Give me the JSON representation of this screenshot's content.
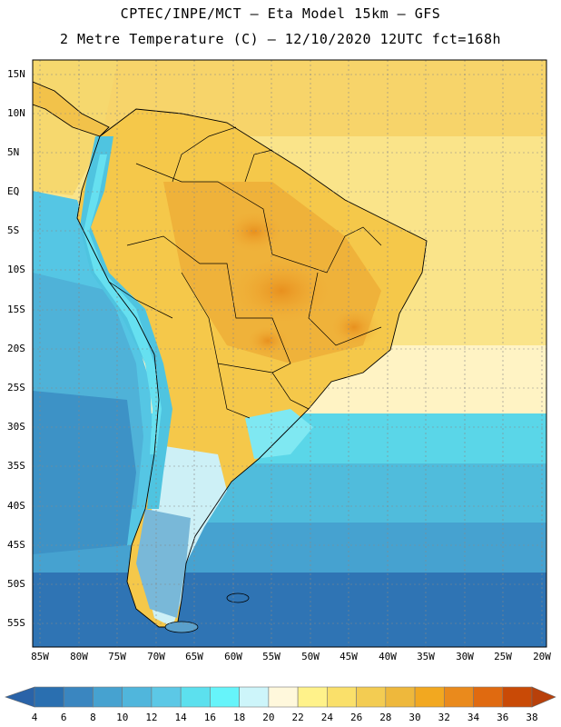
{
  "header": {
    "line1": "CPTEC/INPE/MCT –  Eta Model 15km – GFS",
    "line2": "2 Metre Temperature (C) – 12/10/2020 12UTC fct=168h"
  },
  "map": {
    "region": "South America",
    "lat_labels": [
      "15N",
      "10N",
      "5N",
      "EQ",
      "5S",
      "10S",
      "15S",
      "20S",
      "25S",
      "30S",
      "35S",
      "40S",
      "45S",
      "50S",
      "55S"
    ],
    "lon_labels": [
      "85W",
      "80W",
      "75W",
      "70W",
      "65W",
      "60W",
      "55W",
      "50W",
      "45W",
      "40W",
      "35W",
      "30W",
      "25W",
      "20W"
    ],
    "ocean_color": "#5ad6e8",
    "land_hot_color": "#e8a02a",
    "land_warm_color": "#f5c84a"
  },
  "legend": {
    "ticks": [
      "4",
      "6",
      "8",
      "10",
      "12",
      "14",
      "16",
      "18",
      "20",
      "22",
      "24",
      "26",
      "28",
      "30",
      "32",
      "34",
      "36",
      "38"
    ],
    "colors": [
      "#2a6fb0",
      "#3a86c0",
      "#46a2d0",
      "#50b6dc",
      "#5cc8e6",
      "#5ce0ee",
      "#66f4fa",
      "#cdf5fa",
      "#fff8dc",
      "#fff28a",
      "#fae06a",
      "#f3cc52",
      "#eeb83c",
      "#f2a820",
      "#ea8a1c",
      "#e06a10",
      "#c94a06"
    ],
    "low_color": "#2a63a8",
    "high_color": "#b8400a"
  }
}
